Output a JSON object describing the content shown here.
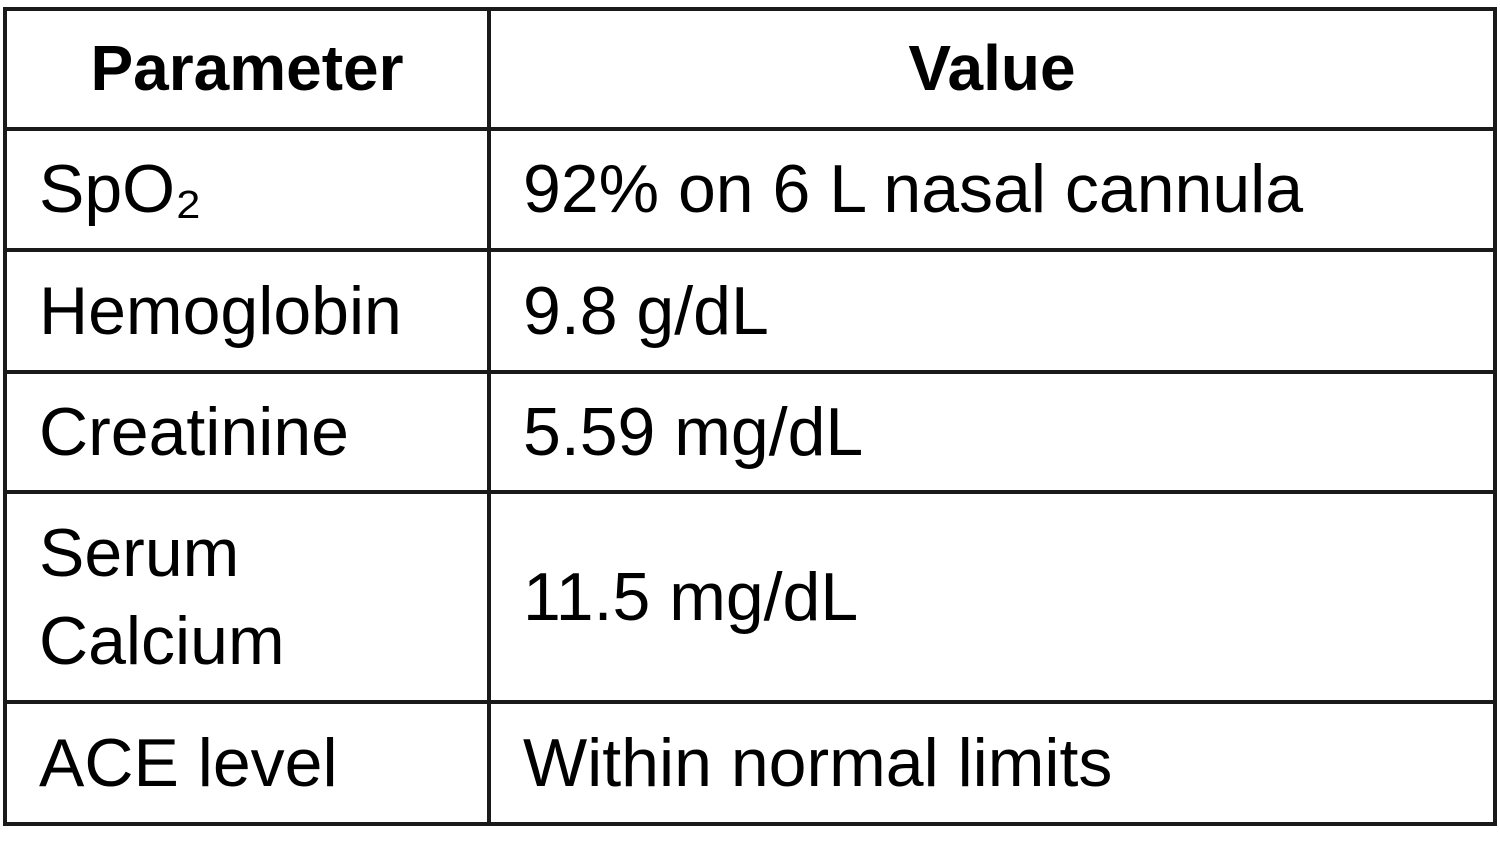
{
  "table": {
    "header": [
      "Parameter",
      "Value"
    ],
    "rows": [
      [
        "SpO₂",
        "92% on 6 L nasal cannula"
      ],
      [
        "Hemoglobin",
        "9.8 g/dL"
      ],
      [
        "Creatinine",
        "5.59 mg/dL"
      ],
      [
        "Serum Calcium",
        "11.5 mg/dL"
      ],
      [
        "ACE level",
        "Within normal limits"
      ]
    ]
  }
}
